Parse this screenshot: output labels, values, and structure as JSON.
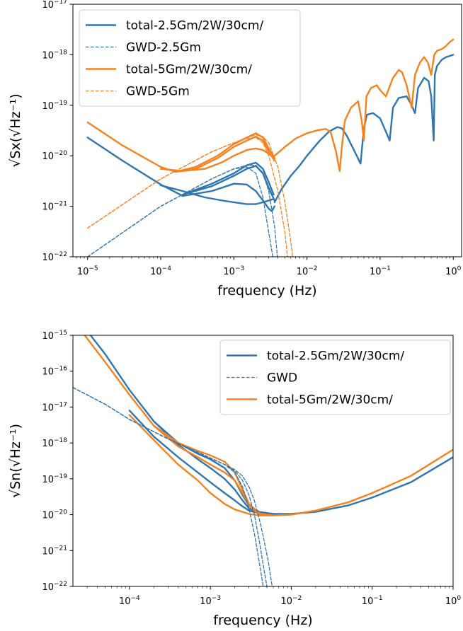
{
  "colors": {
    "blue": "#2f75b0",
    "orange": "#f5821f"
  },
  "chart_data": [
    {
      "type": "line",
      "scale": "log-log",
      "xlim": [
        6.3e-06,
        1.3
      ],
      "ylim": [
        1e-22,
        1e-17
      ],
      "xlabel": "frequency (Hz)",
      "ylabel": "√Sx(√Hz⁻¹)",
      "x_ticks": [
        {
          "base": "10",
          "exp": "−5",
          "value": 1e-05
        },
        {
          "base": "10",
          "exp": "−4",
          "value": 0.0001
        },
        {
          "base": "10",
          "exp": "−3",
          "value": 0.001
        },
        {
          "base": "10",
          "exp": "−2",
          "value": 0.01
        },
        {
          "base": "10",
          "exp": "−1",
          "value": 0.1
        },
        {
          "base": "10",
          "exp": "0",
          "value": 1
        }
      ],
      "y_ticks": [
        {
          "base": "10",
          "exp": "−22",
          "value": 1e-22
        },
        {
          "base": "10",
          "exp": "−21",
          "value": 1e-21
        },
        {
          "base": "10",
          "exp": "−20",
          "value": 1e-20
        },
        {
          "base": "10",
          "exp": "−19",
          "value": 1e-19
        },
        {
          "base": "10",
          "exp": "−18",
          "value": 1e-18
        },
        {
          "base": "10",
          "exp": "−17",
          "value": 1e-17
        }
      ],
      "legend_position": "upper-left",
      "legend": [
        {
          "label": "total-2.5Gm/2W/30cm/",
          "color": "#2f75b0",
          "dash": false
        },
        {
          "label": "GWD-2.5Gm",
          "color": "#2f75b0",
          "dash": true
        },
        {
          "label": "total-5Gm/2W/30cm/",
          "color": "#f5821f",
          "dash": false
        },
        {
          "label": "GWD-5Gm",
          "color": "#f5821f",
          "dash": true
        }
      ],
      "series": [
        {
          "color": "#2f75b0",
          "dash": false,
          "x": [
            1e-05,
            3e-05,
            0.0001,
            0.0002,
            0.0005,
            0.001,
            0.0015,
            0.002,
            0.0025,
            0.003,
            0.0033,
            0.0036
          ],
          "y": [
            2.3e-20,
            8e-21,
            2.7e-21,
            1.6e-21,
            2e-21,
            2.8e-21,
            2.7e-21,
            2e-21,
            1.3e-21,
            9e-22,
            8e-22,
            1e-21
          ]
        },
        {
          "color": "#2f75b0",
          "dash": false,
          "x": [
            0.0002,
            0.0005,
            0.001,
            0.0015,
            0.002,
            0.0025,
            0.003,
            0.0036
          ],
          "y": [
            1.7e-21,
            2.5e-21,
            4e-21,
            5.5e-21,
            6.3e-21,
            4.5e-21,
            2.3e-21,
            1.3e-21
          ]
        },
        {
          "color": "#2f75b0",
          "dash": false,
          "x": [
            0.0002,
            0.0005,
            0.001,
            0.0015,
            0.002,
            0.0025,
            0.003,
            0.0035
          ],
          "y": [
            1.7e-21,
            2.8e-21,
            4.5e-21,
            6.5e-21,
            7.3e-21,
            5.5e-21,
            3e-21,
            1.7e-21
          ]
        },
        {
          "color": "#2f75b0",
          "dash": false,
          "x": [
            0.0001,
            0.0002,
            0.0004,
            0.0007,
            0.001,
            0.0015,
            0.002,
            0.0025,
            0.003,
            0.0035
          ],
          "y": [
            2.6e-21,
            2e-21,
            1.5e-21,
            1.3e-21,
            1.2e-21,
            1.1e-21,
            1.1e-21,
            1.2e-21,
            1.3e-21,
            1.4e-21
          ]
        },
        {
          "color": "#2f75b0",
          "dash": false,
          "x": [
            0.0036,
            0.0045,
            0.006,
            0.008,
            0.01,
            0.015,
            0.02,
            0.026,
            0.03,
            0.035,
            0.045,
            0.054,
            0.06,
            0.066,
            0.08,
            0.1,
            0.12,
            0.135,
            0.15,
            0.18,
            0.23,
            0.27,
            0.3,
            0.33,
            0.4,
            0.46,
            0.5,
            0.54,
            0.56,
            0.6,
            0.7,
            0.8,
            0.9,
            1
          ],
          "y": [
            1.2e-21,
            2.2e-21,
            4e-21,
            6.5e-21,
            1e-20,
            2e-20,
            3e-20,
            3.7e-20,
            3.5e-20,
            2.5e-20,
            1.2e-20,
            7e-21,
            3.5e-20,
            6.5e-20,
            7e-20,
            5.5e-20,
            3e-20,
            2e-20,
            9e-20,
            1.4e-19,
            1.5e-19,
            1e-19,
            7e-20,
            2.2e-19,
            3.5e-19,
            3e-19,
            1.5e-19,
            2e-20,
            4e-19,
            6e-19,
            8e-19,
            9e-19,
            9.5e-19,
            1e-18
          ]
        },
        {
          "color": "#f5821f",
          "dash": false,
          "x": [
            1e-05,
            3e-05,
            0.0001,
            0.00016,
            0.0003,
            0.0006,
            0.001,
            0.0015,
            0.002,
            0.0025,
            0.003,
            0.0036
          ],
          "y": [
            4.6e-20,
            1.6e-20,
            6e-21,
            4.8e-21,
            5.5e-21,
            9e-21,
            1.5e-20,
            2e-20,
            2.4e-20,
            2e-20,
            1.2e-20,
            8e-21
          ]
        },
        {
          "color": "#f5821f",
          "dash": false,
          "x": [
            0.00016,
            0.0003,
            0.0006,
            0.001,
            0.0015,
            0.002,
            0.0025,
            0.003,
            0.0036
          ],
          "y": [
            4.8e-21,
            6e-21,
            1e-20,
            1.7e-20,
            2.3e-20,
            2.8e-20,
            2.3e-20,
            1.4e-20,
            9e-21
          ]
        },
        {
          "color": "#f5821f",
          "dash": false,
          "x": [
            0.0001,
            0.0002,
            0.0004,
            0.0007,
            0.001,
            0.0015,
            0.002,
            0.0025,
            0.003,
            0.0036
          ],
          "y": [
            5.5e-21,
            5e-21,
            5.5e-21,
            7.5e-21,
            1e-20,
            1.3e-20,
            1.4e-20,
            1.3e-20,
            1.1e-20,
            9e-21
          ]
        },
        {
          "color": "#f5821f",
          "dash": false,
          "x": [
            0.0036,
            0.005,
            0.007,
            0.01,
            0.014,
            0.018,
            0.021,
            0.025,
            0.028,
            0.03,
            0.033,
            0.04,
            0.05,
            0.056,
            0.06,
            0.065,
            0.075,
            0.09,
            0.1,
            0.12,
            0.15,
            0.18,
            0.2,
            0.23,
            0.27,
            0.3,
            0.35,
            0.4,
            0.45,
            0.5,
            0.55,
            0.6,
            0.7,
            0.8,
            0.9,
            1
          ],
          "y": [
            1e-20,
            1.5e-20,
            2.2e-20,
            2.8e-20,
            3.2e-20,
            3.4e-20,
            3e-20,
            1.2e-20,
            5e-21,
            1.5e-20,
            5e-20,
            9e-20,
            1.2e-19,
            5e-20,
            2e-20,
            1.5e-19,
            2.2e-19,
            2.5e-19,
            2e-19,
            1.5e-19,
            3.5e-19,
            5e-19,
            4.5e-19,
            2.5e-19,
            9e-20,
            4e-19,
            7e-19,
            9e-19,
            7e-19,
            4e-19,
            1e-18,
            1.2e-18,
            1.3e-18,
            1.5e-18,
            1.8e-18,
            2e-18
          ]
        },
        {
          "color": "#2f75b0",
          "dash": true,
          "x": [
            1e-05,
            0.0001,
            0.0005,
            0.001,
            0.0015,
            0.002,
            0.0025,
            0.003,
            0.0035
          ],
          "y": [
            1e-22,
            1e-21,
            3.5e-21,
            5.5e-21,
            6e-21,
            4.5e-21,
            1.5e-21,
            3e-22,
            8e-23
          ]
        },
        {
          "color": "#2f75b0",
          "dash": true,
          "x": [
            1e-05,
            0.0001,
            0.0005,
            0.001,
            0.0015,
            0.002,
            0.0025,
            0.003,
            0.0036,
            0.004
          ],
          "y": [
            1e-22,
            1e-21,
            3.5e-21,
            5.5e-21,
            6.5e-21,
            6.5e-21,
            4.5e-21,
            2e-21,
            4e-22,
            8e-23
          ]
        },
        {
          "color": "#f5821f",
          "dash": true,
          "x": [
            1e-05,
            0.0001,
            0.0005,
            0.001,
            0.0015,
            0.002,
            0.0025,
            0.003,
            0.004,
            0.005,
            0.0055
          ],
          "y": [
            3.7e-22,
            3.5e-21,
            1.2e-20,
            1.8e-20,
            2.2e-20,
            2.3e-20,
            1.8e-20,
            1e-20,
            2e-21,
            3e-22,
            8e-23
          ]
        },
        {
          "color": "#f5821f",
          "dash": true,
          "x": [
            1e-05,
            0.0001,
            0.0005,
            0.001,
            0.0015,
            0.002,
            0.0025,
            0.003,
            0.004,
            0.005,
            0.006,
            0.0065
          ],
          "y": [
            3.7e-22,
            3.5e-21,
            1.2e-20,
            1.8e-20,
            2.3e-20,
            2.6e-20,
            2.4e-20,
            1.8e-20,
            6e-21,
            1.2e-21,
            2e-22,
            8e-23
          ]
        }
      ]
    },
    {
      "type": "line",
      "scale": "log-log",
      "xlim": [
        2e-05,
        1.0
      ],
      "ylim": [
        1e-22,
        1e-15
      ],
      "xlabel": "frequency (Hz)",
      "ylabel": "√Sn(√Hz⁻¹)",
      "x_ticks": [
        {
          "base": "10",
          "exp": "−4",
          "value": 0.0001
        },
        {
          "base": "10",
          "exp": "−3",
          "value": 0.001
        },
        {
          "base": "10",
          "exp": "−2",
          "value": 0.01
        },
        {
          "base": "10",
          "exp": "−1",
          "value": 0.1
        },
        {
          "base": "10",
          "exp": "0",
          "value": 1
        }
      ],
      "y_ticks": [
        {
          "base": "10",
          "exp": "−22",
          "value": 1e-22
        },
        {
          "base": "10",
          "exp": "−21",
          "value": 1e-21
        },
        {
          "base": "10",
          "exp": "−20",
          "value": 1e-20
        },
        {
          "base": "10",
          "exp": "−19",
          "value": 1e-19
        },
        {
          "base": "10",
          "exp": "−18",
          "value": 1e-18
        },
        {
          "base": "10",
          "exp": "−17",
          "value": 1e-17
        },
        {
          "base": "10",
          "exp": "−16",
          "value": 1e-16
        },
        {
          "base": "10",
          "exp": "−15",
          "value": 1e-15
        }
      ],
      "legend_position": "upper-right",
      "legend": [
        {
          "label": "total-2.5Gm/2W/30cm/",
          "color": "#2f75b0",
          "dash": false
        },
        {
          "label": "GWD",
          "color": "#2f75b0",
          "dash": true
        },
        {
          "label": "total-5Gm/2W/30cm/",
          "color": "#f5821f",
          "dash": false
        }
      ],
      "series": [
        {
          "color": "#2f75b0",
          "dash": false,
          "x": [
            3.3e-05,
            5e-05,
            0.0001,
            0.0002,
            0.0004,
            0.0007,
            0.001,
            0.0015,
            0.002,
            0.0025,
            0.003,
            0.004,
            0.006,
            0.01,
            0.02,
            0.05,
            0.1,
            0.3,
            1
          ],
          "y": [
            1e-15,
            3e-16,
            3e-17,
            4e-18,
            9e-19,
            3.5e-19,
            2e-19,
            1e-19,
            5e-20,
            2.5e-20,
            1.5e-20,
            1.1e-20,
            1.05e-20,
            1.05e-20,
            1.2e-20,
            1.8e-20,
            3e-20,
            8e-20,
            4e-19
          ]
        },
        {
          "color": "#2f75b0",
          "dash": false,
          "x": [
            0.0002,
            0.0004,
            0.0007,
            0.001,
            0.0015,
            0.002,
            0.0025,
            0.003,
            0.004,
            0.006
          ],
          "y": [
            4e-18,
            1e-18,
            5e-19,
            3.5e-19,
            2e-19,
            9e-20,
            3.5e-20,
            1.8e-20,
            1.2e-20,
            1.05e-20
          ]
        },
        {
          "color": "#2f75b0",
          "dash": false,
          "x": [
            0.0001,
            0.0002,
            0.0004,
            0.0007,
            0.001,
            0.0015,
            0.002,
            0.0025,
            0.003,
            0.004,
            0.006
          ],
          "y": [
            8e-18,
            1.5e-18,
            4e-19,
            1.5e-19,
            8e-20,
            4e-20,
            2.5e-20,
            1.7e-20,
            1.3e-20,
            1.1e-20,
            1.05e-20
          ]
        },
        {
          "color": "#f5821f",
          "dash": false,
          "x": [
            2.8e-05,
            5e-05,
            0.0001,
            0.0002,
            0.0004,
            0.0007,
            0.001,
            0.0015,
            0.002,
            0.0025,
            0.003,
            0.004,
            0.006,
            0.01,
            0.02,
            0.05,
            0.1,
            0.3,
            1
          ],
          "y": [
            1e-15,
            1.8e-16,
            2.2e-17,
            3e-18,
            8e-19,
            4e-19,
            2.5e-19,
            1.5e-19,
            9e-20,
            4e-20,
            1.8e-20,
            1e-20,
            9.5e-21,
            1e-20,
            1.3e-20,
            2.2e-20,
            4e-20,
            1.2e-19,
            6.5e-19
          ]
        },
        {
          "color": "#f5821f",
          "dash": false,
          "x": [
            0.0002,
            0.0004,
            0.0007,
            0.001,
            0.0015,
            0.002,
            0.0025,
            0.003,
            0.004,
            0.006
          ],
          "y": [
            3e-18,
            1e-18,
            6e-19,
            4.5e-19,
            3e-19,
            1.5e-19,
            5e-20,
            2e-20,
            1.1e-20,
            9.5e-21
          ]
        },
        {
          "color": "#f5821f",
          "dash": false,
          "x": [
            0.0001,
            0.0002,
            0.0004,
            0.0007,
            0.001,
            0.0015,
            0.002,
            0.003,
            0.004,
            0.006
          ],
          "y": [
            6e-18,
            1.2e-18,
            2.5e-19,
            9e-20,
            4e-20,
            2e-20,
            1.4e-20,
            1.05e-20,
            9.5e-21,
            9.5e-21
          ]
        },
        {
          "color": "#2f75b0",
          "dash": true,
          "x": [
            2e-05,
            5e-05,
            0.0001,
            0.0003,
            0.0007,
            0.001,
            0.0015,
            0.002,
            0.0025,
            0.003,
            0.0035,
            0.004,
            0.0045
          ],
          "y": [
            3.5e-17,
            1.2e-17,
            4.5e-18,
            1.3e-18,
            5.5e-19,
            3.8e-19,
            2.5e-19,
            1.5e-19,
            6e-20,
            1.5e-20,
            3e-21,
            5e-22,
            1e-22
          ]
        },
        {
          "color": "#2f75b0",
          "dash": true,
          "x": [
            2e-05,
            5e-05,
            0.0001,
            0.0003,
            0.0007,
            0.001,
            0.0015,
            0.002,
            0.0025,
            0.003,
            0.0035,
            0.004,
            0.0045,
            0.005
          ],
          "y": [
            3.5e-17,
            1.2e-17,
            4.5e-18,
            1.3e-18,
            5.5e-19,
            3.8e-19,
            2.5e-19,
            1.7e-19,
            9e-20,
            3.5e-20,
            1e-20,
            2e-21,
            4e-22,
            1e-22
          ]
        },
        {
          "color": "#2f75b0",
          "dash": true,
          "x": [
            2e-05,
            5e-05,
            0.0001,
            0.0003,
            0.0007,
            0.001,
            0.0015,
            0.002,
            0.0025,
            0.003,
            0.0035,
            0.004,
            0.0045,
            0.0052,
            0.0058
          ],
          "y": [
            3.5e-17,
            1.2e-17,
            4.5e-18,
            1.3e-18,
            5.5e-19,
            3.8e-19,
            2.5e-19,
            1.8e-19,
            1.2e-19,
            6e-20,
            2.5e-20,
            8e-21,
            2.5e-21,
            5e-22,
            1e-22
          ]
        }
      ]
    }
  ]
}
